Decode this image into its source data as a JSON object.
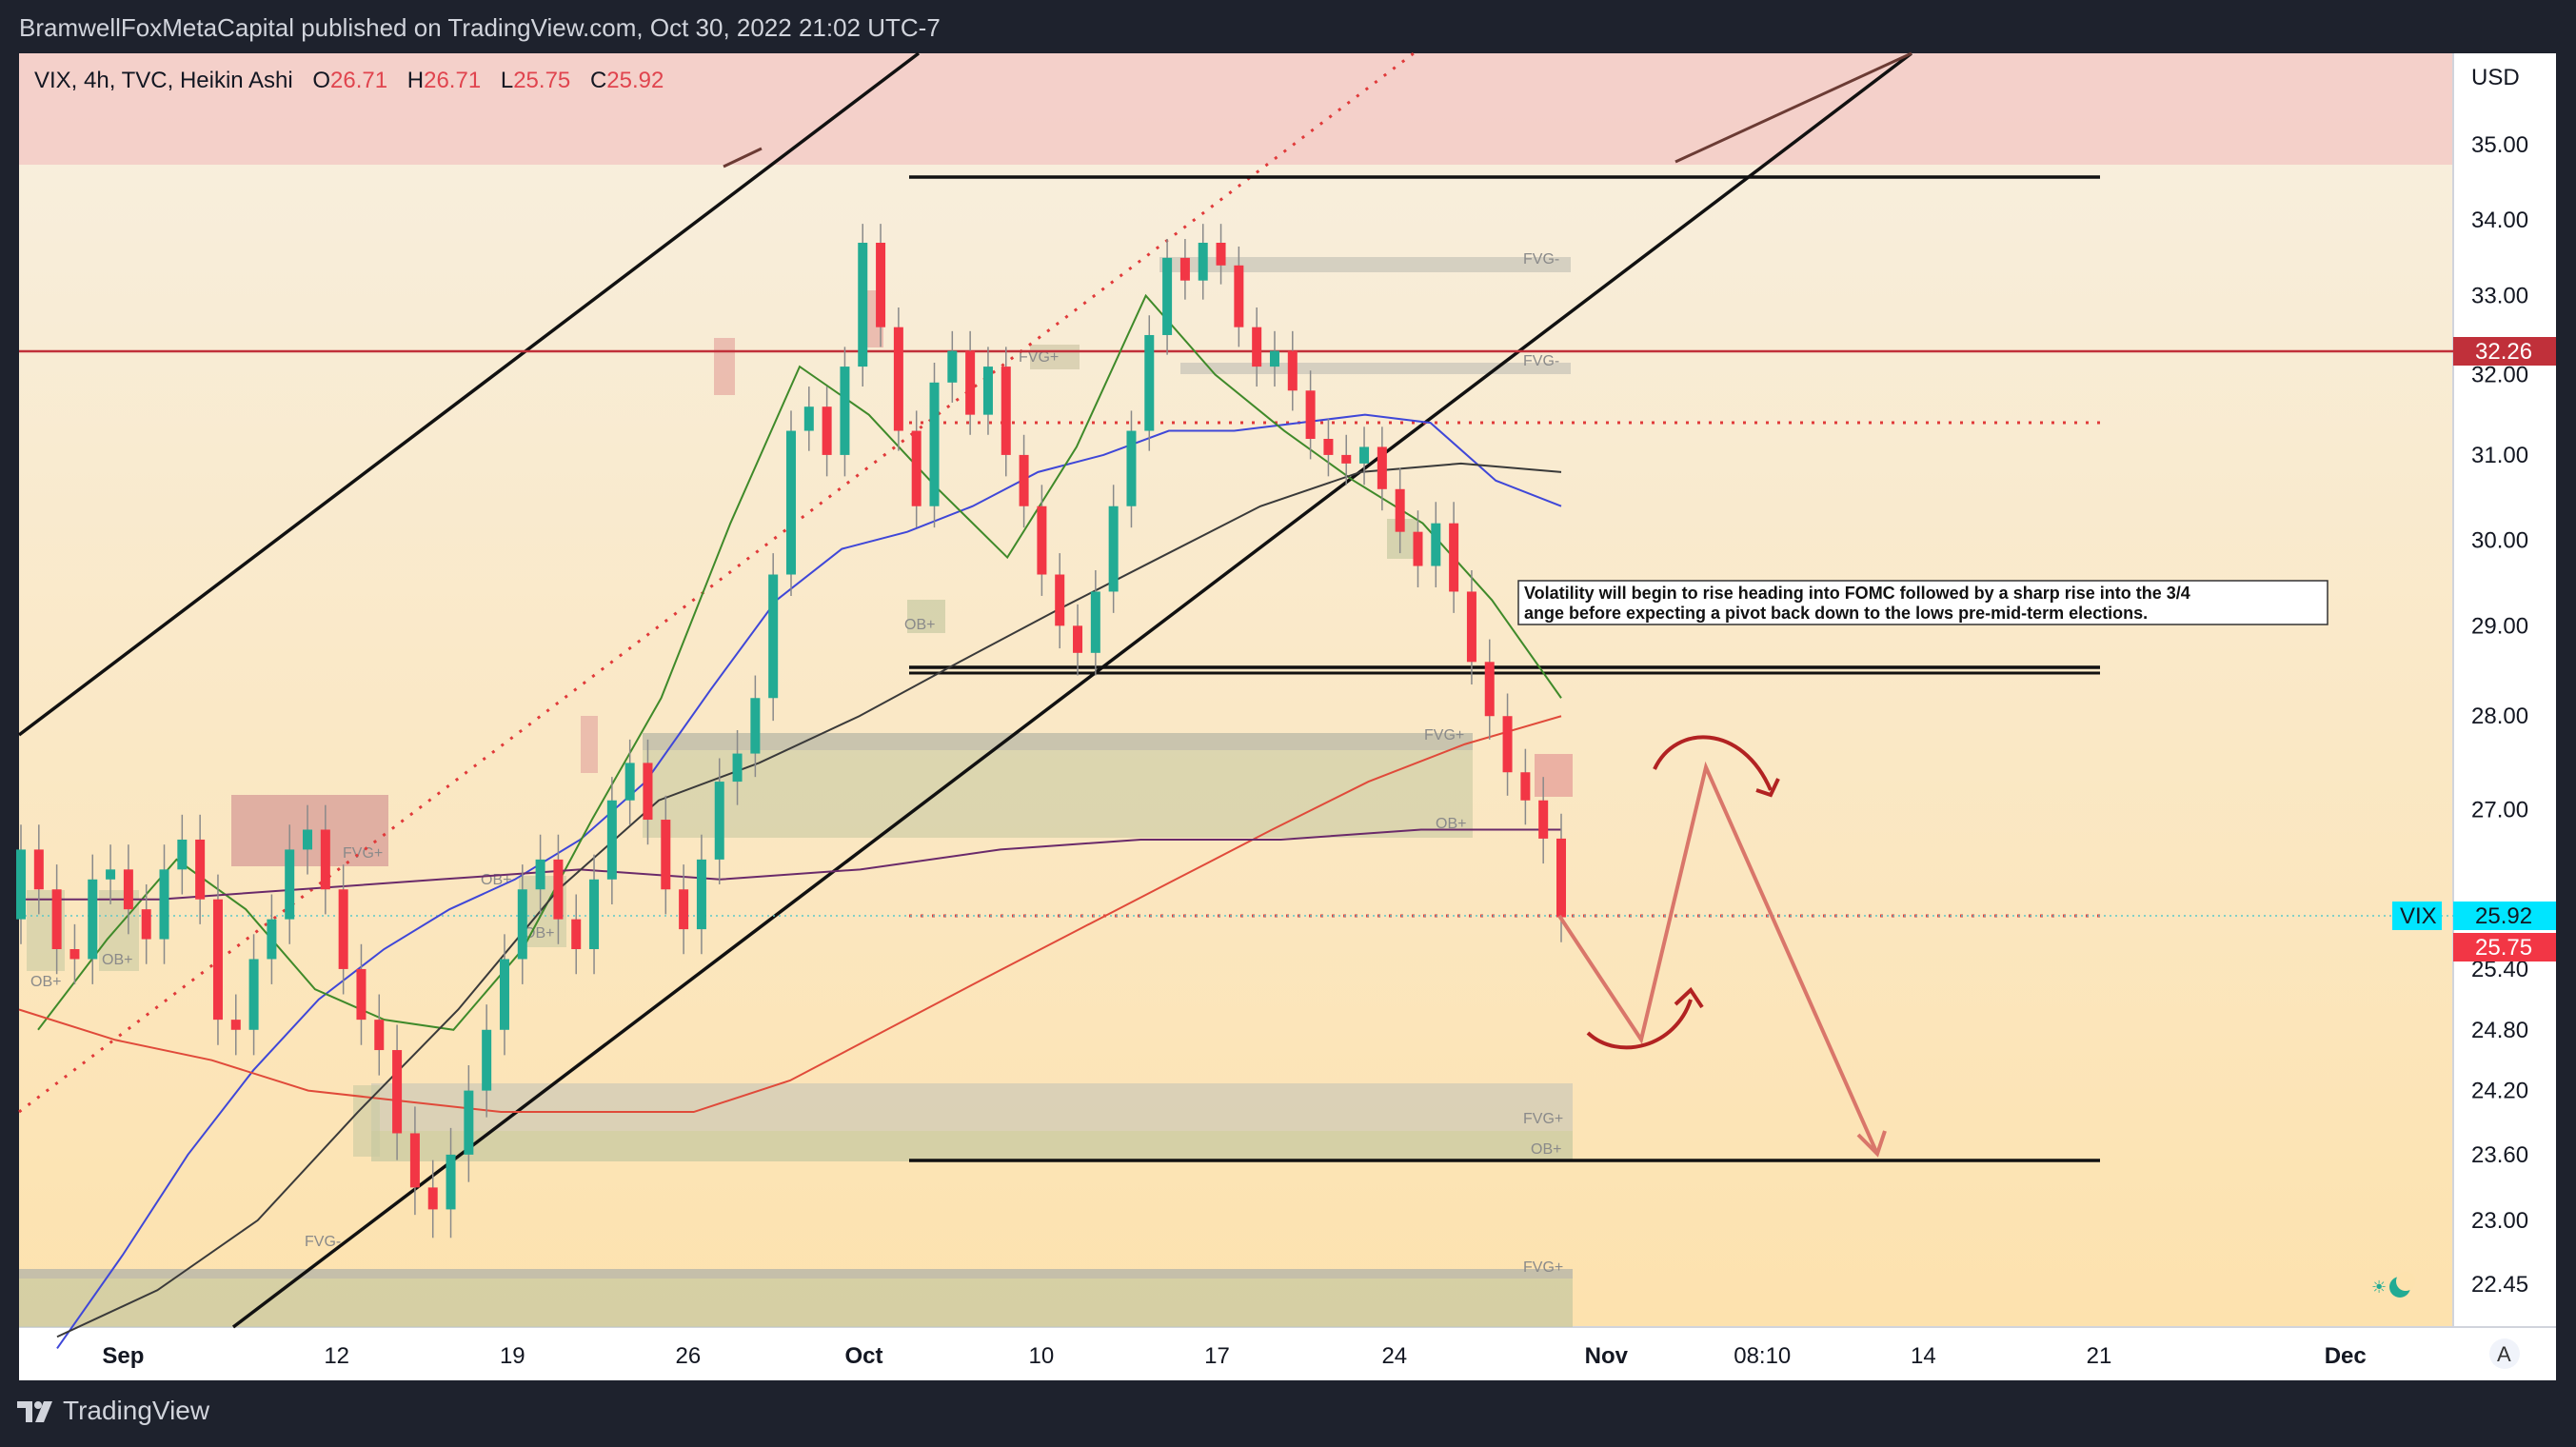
{
  "header": {
    "publisher": "BramwellFoxMetaCapital published on TradingView.com, Oct 30, 2022 21:02 UTC-7"
  },
  "legend": {
    "symbol": "VIX, 4h, TVC, Heikin Ashi",
    "o_label": "O",
    "o": "26.71",
    "h_label": "H",
    "h": "26.71",
    "l_label": "L",
    "l": "25.75",
    "c_label": "C",
    "c": "25.92"
  },
  "footer": {
    "brand": "TradingView"
  },
  "colors": {
    "bull": "#22ab94",
    "bear": "#f23645",
    "bg_top": "#f6ecda",
    "bg_bottom": "#fde3b0",
    "resistance": "#c0303a"
  },
  "chart_data": {
    "type": "candlestick",
    "symbol": "VIX",
    "interval": "4h",
    "style": "Heikin Ashi",
    "currency": "USD",
    "ylim": [
      22.0,
      35.9
    ],
    "y_ticks": [
      "35.00",
      "34.00",
      "33.00",
      "32.00",
      "31.00",
      "30.00",
      "29.00",
      "28.00",
      "27.00",
      "25.40",
      "24.80",
      "24.20",
      "23.60",
      "23.00",
      "22.45"
    ],
    "x_ticks": [
      "Sep",
      "12",
      "19",
      "26",
      "Oct",
      "10",
      "17",
      "24",
      "Nov",
      "08:10",
      "14",
      "21",
      "Dec"
    ],
    "price_labels": [
      {
        "name": "VIX",
        "value": "25.92"
      },
      {
        "name": "",
        "value": "25.75"
      },
      {
        "name": "",
        "value": "32.26"
      }
    ],
    "horizontal_levels": [
      34.5,
      32.26,
      31.4,
      28.5,
      25.95,
      23.58
    ],
    "annotation": "Volatility will begin to rise heading into FOMC followed by a sharp rise into the 3/4 ange before expecting a pivot back down to the lows pre-mid-term elections.",
    "zone_labels": [
      "FVG-",
      "FVG-",
      "FVG+",
      "FVG+",
      "FVG+",
      "FVG+",
      "OB+",
      "OB+",
      "OB+",
      "OB+",
      "OB+",
      "OB+",
      "OB+",
      "FVG+",
      "FVG-"
    ],
    "scale_mode_button": "A",
    "projection_path": [
      {
        "date": "Oct 28",
        "value": 25.9
      },
      {
        "date": "Nov 2",
        "value": 24.75
      },
      {
        "date": "Nov 5",
        "value": 27.45
      },
      {
        "date": "Nov 11",
        "value": 23.6
      }
    ],
    "candles": [
      {
        "o": 25.9,
        "c": 26.6
      },
      {
        "o": 26.6,
        "c": 26.2
      },
      {
        "o": 26.2,
        "c": 25.6
      },
      {
        "o": 25.6,
        "c": 25.5
      },
      {
        "o": 25.5,
        "c": 26.3
      },
      {
        "o": 26.3,
        "c": 26.4
      },
      {
        "o": 26.4,
        "c": 26.0
      },
      {
        "o": 26.0,
        "c": 25.7
      },
      {
        "o": 25.7,
        "c": 26.4
      },
      {
        "o": 26.4,
        "c": 26.7
      },
      {
        "o": 26.7,
        "c": 26.1
      },
      {
        "o": 26.1,
        "c": 24.9
      },
      {
        "o": 24.9,
        "c": 24.8
      },
      {
        "o": 24.8,
        "c": 25.5
      },
      {
        "o": 25.5,
        "c": 25.9
      },
      {
        "o": 25.9,
        "c": 26.6
      },
      {
        "o": 26.6,
        "c": 26.8
      },
      {
        "o": 26.8,
        "c": 26.2
      },
      {
        "o": 26.2,
        "c": 25.4
      },
      {
        "o": 25.4,
        "c": 24.9
      },
      {
        "o": 24.9,
        "c": 24.6
      },
      {
        "o": 24.6,
        "c": 23.8
      },
      {
        "o": 23.8,
        "c": 23.3
      },
      {
        "o": 23.3,
        "c": 23.1
      },
      {
        "o": 23.1,
        "c": 23.6
      },
      {
        "o": 23.6,
        "c": 24.2
      },
      {
        "o": 24.2,
        "c": 24.8
      },
      {
        "o": 24.8,
        "c": 25.5
      },
      {
        "o": 25.5,
        "c": 26.2
      },
      {
        "o": 26.2,
        "c": 26.5
      },
      {
        "o": 26.5,
        "c": 25.9
      },
      {
        "o": 25.9,
        "c": 25.6
      },
      {
        "o": 25.6,
        "c": 26.3
      },
      {
        "o": 26.3,
        "c": 27.1
      },
      {
        "o": 27.1,
        "c": 27.5
      },
      {
        "o": 27.5,
        "c": 26.9
      },
      {
        "o": 26.9,
        "c": 26.2
      },
      {
        "o": 26.2,
        "c": 25.8
      },
      {
        "o": 25.8,
        "c": 26.5
      },
      {
        "o": 26.5,
        "c": 27.3
      },
      {
        "o": 27.3,
        "c": 27.6
      },
      {
        "o": 27.6,
        "c": 28.2
      },
      {
        "o": 28.2,
        "c": 29.6
      },
      {
        "o": 29.6,
        "c": 31.3
      },
      {
        "o": 31.3,
        "c": 31.6
      },
      {
        "o": 31.6,
        "c": 31.0
      },
      {
        "o": 31.0,
        "c": 32.1
      },
      {
        "o": 32.1,
        "c": 33.7
      },
      {
        "o": 33.7,
        "c": 32.6
      },
      {
        "o": 32.6,
        "c": 31.3
      },
      {
        "o": 31.3,
        "c": 30.4
      },
      {
        "o": 30.4,
        "c": 31.9
      },
      {
        "o": 31.9,
        "c": 32.3
      },
      {
        "o": 32.3,
        "c": 31.5
      },
      {
        "o": 31.5,
        "c": 32.1
      },
      {
        "o": 32.1,
        "c": 31.0
      },
      {
        "o": 31.0,
        "c": 30.4
      },
      {
        "o": 30.4,
        "c": 29.6
      },
      {
        "o": 29.6,
        "c": 29.0
      },
      {
        "o": 29.0,
        "c": 28.7
      },
      {
        "o": 28.7,
        "c": 29.4
      },
      {
        "o": 29.4,
        "c": 30.4
      },
      {
        "o": 30.4,
        "c": 31.3
      },
      {
        "o": 31.3,
        "c": 32.5
      },
      {
        "o": 32.5,
        "c": 33.5
      },
      {
        "o": 33.5,
        "c": 33.2
      },
      {
        "o": 33.2,
        "c": 33.7
      },
      {
        "o": 33.7,
        "c": 33.4
      },
      {
        "o": 33.4,
        "c": 32.6
      },
      {
        "o": 32.6,
        "c": 32.1
      },
      {
        "o": 32.1,
        "c": 32.3
      },
      {
        "o": 32.3,
        "c": 31.8
      },
      {
        "o": 31.8,
        "c": 31.2
      },
      {
        "o": 31.2,
        "c": 31.0
      },
      {
        "o": 31.0,
        "c": 30.9
      },
      {
        "o": 30.9,
        "c": 31.1
      },
      {
        "o": 31.1,
        "c": 30.6
      },
      {
        "o": 30.6,
        "c": 30.1
      },
      {
        "o": 30.1,
        "c": 29.7
      },
      {
        "o": 29.7,
        "c": 30.2
      },
      {
        "o": 30.2,
        "c": 29.4
      },
      {
        "o": 29.4,
        "c": 28.6
      },
      {
        "o": 28.6,
        "c": 28.0
      },
      {
        "o": 28.0,
        "c": 27.4
      },
      {
        "o": 27.4,
        "c": 27.1
      },
      {
        "o": 27.1,
        "c": 26.71
      },
      {
        "o": 26.71,
        "c": 25.92
      }
    ],
    "moving_averages": [
      {
        "name": "",
        "color": "#3f47d8",
        "values": [
          21.9,
          22.7,
          23.6,
          24.4,
          25.1,
          25.6,
          26.0,
          26.3,
          26.7,
          27.3,
          28.3,
          29.3,
          29.9,
          30.1,
          30.4,
          30.8,
          31.0,
          31.3,
          31.3,
          31.4,
          31.5,
          31.4,
          30.7,
          30.4
        ]
      },
      {
        "name": "",
        "color": "#3f8a2a",
        "values": [
          24.8,
          25.7,
          26.5,
          26.0,
          25.2,
          24.9,
          24.8,
          25.6,
          26.9,
          28.2,
          30.2,
          32.1,
          31.5,
          30.6,
          29.8,
          31.1,
          33.0,
          32.0,
          31.3,
          30.7,
          30.2,
          29.3,
          28.2
        ]
      },
      {
        "name": "",
        "color": "#e04a3a",
        "values": [
          25.0,
          24.7,
          24.5,
          24.2,
          24.1,
          24.0,
          24.0,
          24.0,
          24.3,
          24.8,
          25.3,
          25.8,
          26.3,
          26.8,
          27.3,
          27.7,
          28.0
        ]
      },
      {
        "name": "",
        "color": "#6a2a6a",
        "values": [
          26.1,
          26.1,
          26.2,
          26.3,
          26.4,
          26.3,
          26.4,
          26.6,
          26.7,
          26.7,
          26.8,
          26.8
        ]
      },
      {
        "name": "",
        "color": "#3a3a3a",
        "values": [
          22.0,
          22.4,
          23.0,
          24.0,
          25.0,
          26.2,
          27.1,
          27.5,
          28.0,
          28.6,
          29.2,
          29.8,
          30.4,
          30.8,
          30.9,
          30.8
        ]
      }
    ]
  }
}
